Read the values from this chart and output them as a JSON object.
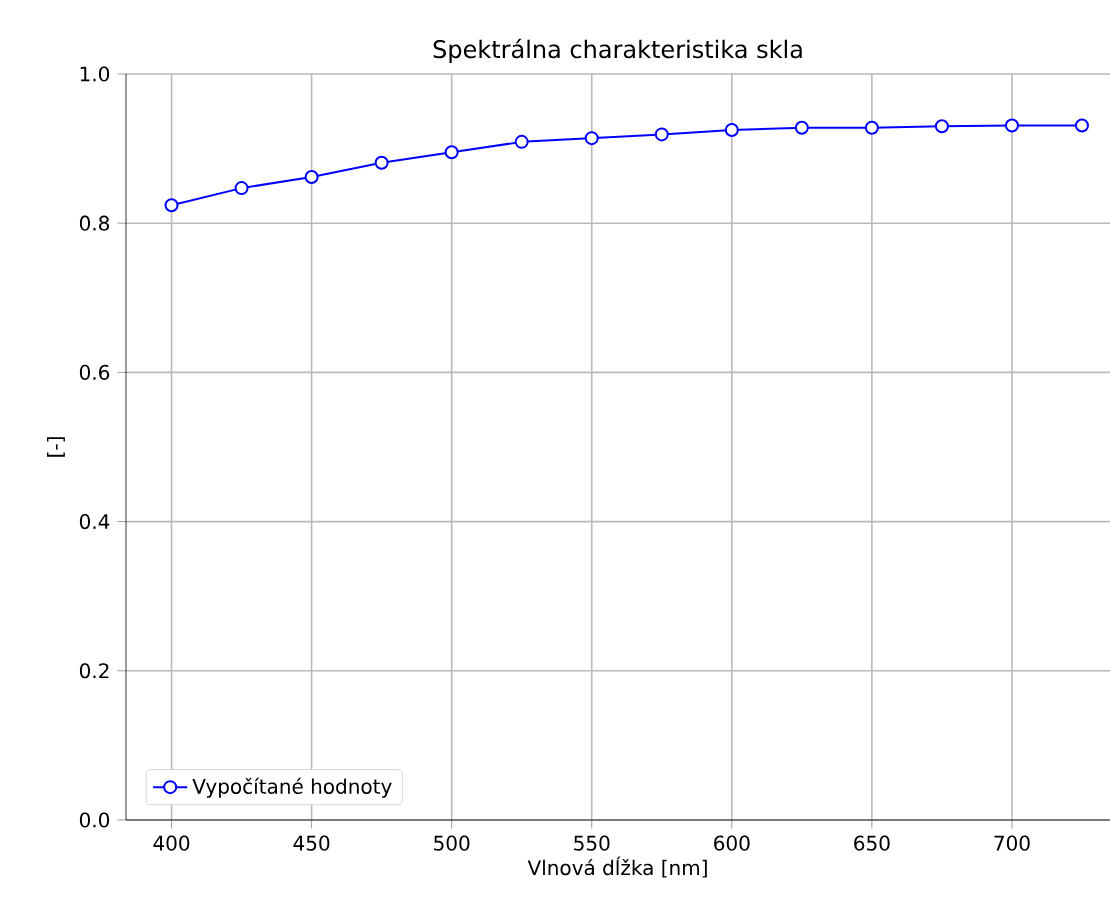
{
  "chart_data": {
    "type": "line",
    "title": "Spektrálna charakteristika skla",
    "xlabel": "Vlnová dĺžka [nm]",
    "ylabel": "[-]",
    "x": [
      400,
      425,
      450,
      475,
      500,
      525,
      550,
      575,
      600,
      625,
      650,
      675,
      700,
      725
    ],
    "series": [
      {
        "name": "Vypočítané hodnoty",
        "color": "#0000ff",
        "values": [
          0.824,
          0.847,
          0.862,
          0.881,
          0.895,
          0.909,
          0.914,
          0.919,
          0.925,
          0.928,
          0.928,
          0.93,
          0.931,
          0.931
        ]
      }
    ],
    "xlim": [
      383.75,
      735
    ],
    "ylim": [
      0,
      1
    ],
    "xticks": [
      400,
      450,
      500,
      550,
      600,
      650,
      700
    ],
    "yticks": [
      {
        "value": 0,
        "label": "0.0"
      },
      0.2,
      0.4,
      0.6,
      0.8,
      {
        "value": 1,
        "label": "1.0"
      }
    ],
    "grid": true,
    "legend": "bottom left",
    "marker": "circle",
    "line_style": "solid"
  }
}
